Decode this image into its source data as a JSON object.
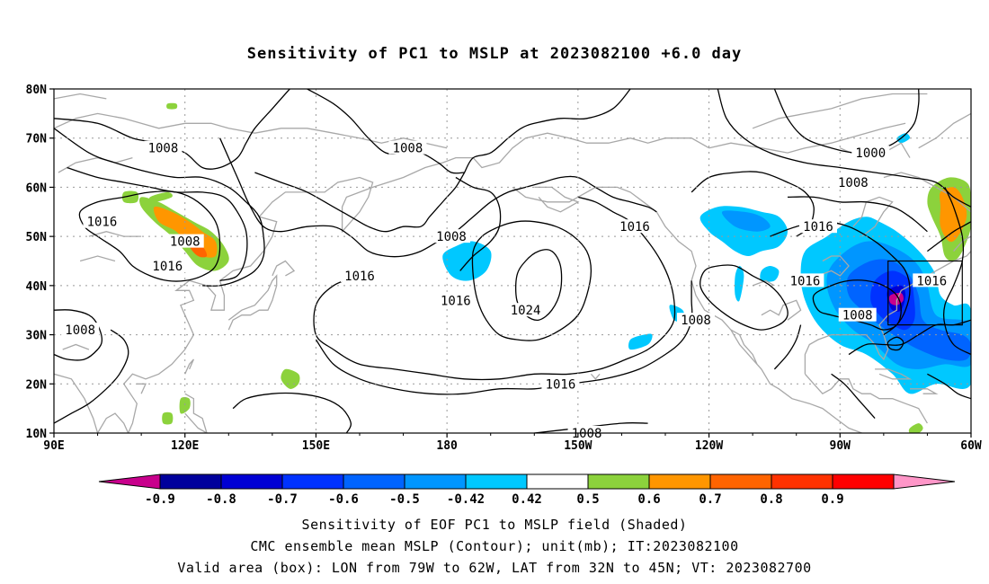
{
  "title": "Sensitivity of PC1 to MSLP at 2023082100 +6.0 day",
  "map": {
    "lat_labels": [
      "80N",
      "70N",
      "60N",
      "50N",
      "40N",
      "30N",
      "20N",
      "10N"
    ],
    "lon_labels": [
      "90E",
      "120E",
      "150E",
      "180",
      "150W",
      "120W",
      "90W",
      "60W"
    ],
    "contour_labels": [
      {
        "text": "1008",
        "lon": 115,
        "lat": 68
      },
      {
        "text": "1008",
        "lon": 171,
        "lat": 68
      },
      {
        "text": "1000",
        "lon": 277,
        "lat": 67
      },
      {
        "text": "1008",
        "lon": 273,
        "lat": 61
      },
      {
        "text": "1016",
        "lon": 101,
        "lat": 53
      },
      {
        "text": "1008",
        "lon": 120,
        "lat": 49
      },
      {
        "text": "1016",
        "lon": 116,
        "lat": 44
      },
      {
        "text": "1016",
        "lon": 160,
        "lat": 42
      },
      {
        "text": "1008",
        "lon": 181,
        "lat": 50
      },
      {
        "text": "1016",
        "lon": 223,
        "lat": 52
      },
      {
        "text": "1016",
        "lon": 265,
        "lat": 52
      },
      {
        "text": "1016",
        "lon": 182,
        "lat": 37
      },
      {
        "text": "1024",
        "lon": 198,
        "lat": 35
      },
      {
        "text": "1016",
        "lon": 262,
        "lat": 41
      },
      {
        "text": "1008",
        "lon": 237,
        "lat": 33
      },
      {
        "text": "1008",
        "lon": 274,
        "lat": 34
      },
      {
        "text": "1016",
        "lon": 291,
        "lat": 41
      },
      {
        "text": "1008",
        "lon": 96,
        "lat": 31
      },
      {
        "text": "1016",
        "lon": 206,
        "lat": 20
      },
      {
        "text": "1008",
        "lon": 212,
        "lat": 10
      }
    ],
    "valid_box": {
      "lon_min": 281,
      "lon_max": 298,
      "lat_min": 32,
      "lat_max": 45
    }
  },
  "colorbar": {
    "labels": [
      "-0.9",
      "-0.8",
      "-0.7",
      "-0.6",
      "-0.5",
      "-0.42",
      "0.42",
      "0.5",
      "0.6",
      "0.7",
      "0.8",
      "0.9"
    ],
    "colors": [
      "#c8008c",
      "#00009c",
      "#0000d4",
      "#0032ff",
      "#0064ff",
      "#0096ff",
      "#00c8ff",
      "#ffffff",
      "#8cd23c",
      "#ff9600",
      "#ff6400",
      "#ff3200",
      "#ff0000",
      "#ff96c8"
    ]
  },
  "captions": [
    "Sensitivity of EOF PC1 to MSLP field (Shaded)",
    "CMC ensemble mean MSLP (Contour); unit(mb); IT:2023082100",
    "Valid area (box): LON from 79W to 62W, LAT from 32N to 45N; VT: 2023082700"
  ]
}
